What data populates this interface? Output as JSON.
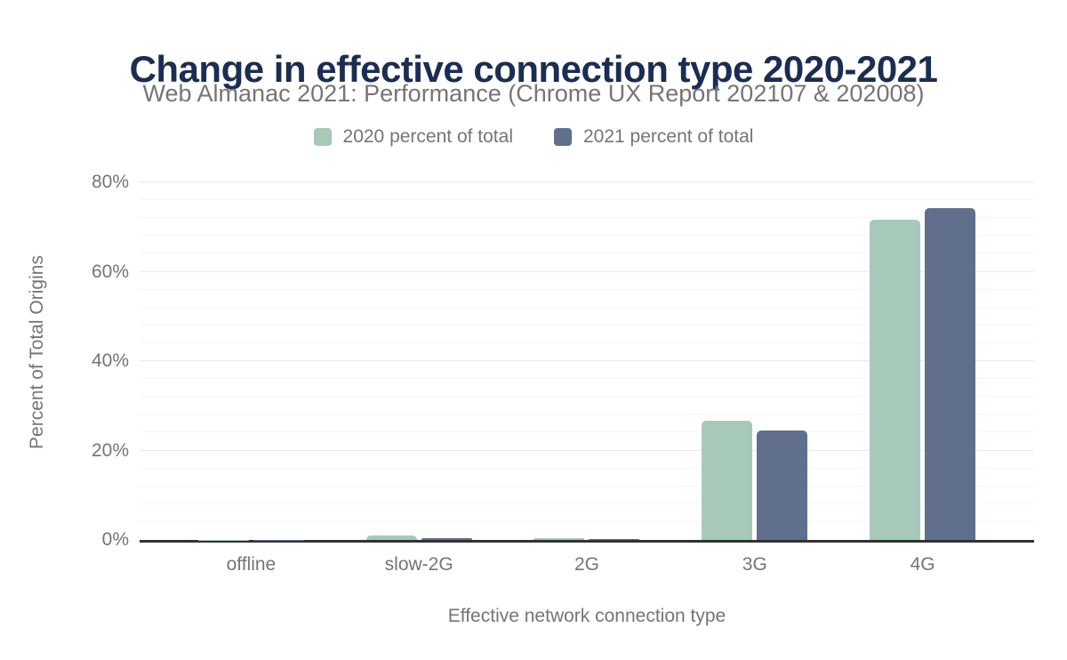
{
  "chart_data": {
    "type": "bar",
    "title": "Change in effective connection type 2020-2021",
    "subtitle": "Web Almanac 2021: Performance (Chrome UX Report 202107 & 202008)",
    "categories": [
      "offline",
      "slow-2G",
      "2G",
      "3G",
      "4G"
    ],
    "series": [
      {
        "name": "2020 percent of total",
        "color": "#a7c9ba",
        "values": [
          0.1,
          1.0,
          0.4,
          26.6,
          71.7
        ]
      },
      {
        "name": "2021 percent of total",
        "color": "#5f6f8c",
        "values": [
          0.1,
          0.5,
          0.2,
          24.4,
          74.3
        ]
      }
    ],
    "xlabel": "Effective network connection type",
    "ylabel": "Percent of Total Origins",
    "unit": "%",
    "ylim": [
      0,
      80
    ],
    "yticks": [
      {
        "value": 0,
        "label": "0%"
      },
      {
        "value": 20,
        "label": "20%"
      },
      {
        "value": 40,
        "label": "40%"
      },
      {
        "value": 60,
        "label": "60%"
      },
      {
        "value": 80,
        "label": "80%"
      }
    ],
    "grid": true,
    "minor_grid_step": 4,
    "major_grid_step": 20,
    "legend_position": "top"
  },
  "colors": {
    "background": "#ffffff",
    "title": "#1b2d53",
    "muted_text": "#757575",
    "axis_line": "#333333",
    "grid_major": "#e9e9e9",
    "grid_minor": "#f5f5f5",
    "series_2020": "#a7c9ba",
    "series_2021": "#5f6f8c"
  }
}
